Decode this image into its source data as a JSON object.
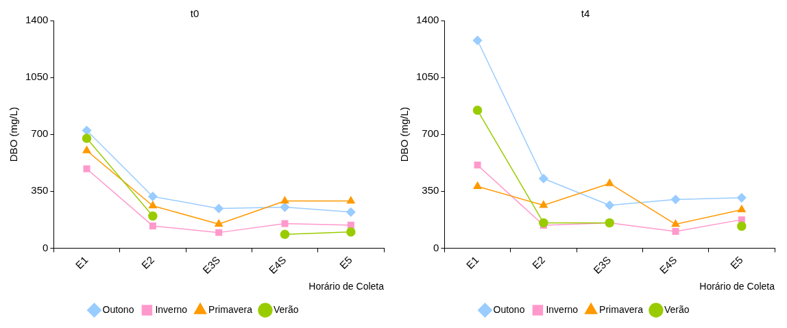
{
  "chart_data": [
    {
      "type": "line",
      "title": "t0",
      "xlabel": "Horário de Coleta",
      "ylabel": "DBO (mg/L)",
      "categories": [
        "E1",
        "E2",
        "E3S",
        "E4S",
        "E5"
      ],
      "ylim": [
        0,
        1400
      ],
      "yticks": [
        0,
        350,
        700,
        1050,
        1400
      ],
      "grid": false,
      "legend": "bottom",
      "line_style": "solid",
      "series": [
        {
          "name": "Outono",
          "color": "#99ccff",
          "marker": "diamond",
          "values": [
            724,
            318,
            244,
            252,
            222
          ]
        },
        {
          "name": "Inverno",
          "color": "#ff99cc",
          "marker": "square",
          "values": [
            488,
            137,
            96,
            151,
            142
          ]
        },
        {
          "name": "Primavera",
          "color": "#ff9900",
          "marker": "triangle",
          "values": [
            600,
            261,
            148,
            290,
            290
          ]
        },
        {
          "name": "Verão",
          "color": "#99cc00",
          "marker": "circle",
          "values": [
            676,
            198,
            null,
            85,
            100
          ]
        }
      ]
    },
    {
      "type": "line",
      "title": "t4",
      "xlabel": "Horário de Coleta",
      "ylabel": "DBO (mg/L)",
      "categories": [
        "E1",
        "E2",
        "E3S",
        "E4S",
        "E5"
      ],
      "ylim": [
        0,
        1400
      ],
      "yticks": [
        0,
        350,
        700,
        1050,
        1400
      ],
      "grid": false,
      "legend": "bottom",
      "line_style": "solid",
      "series": [
        {
          "name": "Outono",
          "color": "#99ccff",
          "marker": "diamond",
          "values": [
            1278,
            428,
            264,
            300,
            310
          ]
        },
        {
          "name": "Inverno",
          "color": "#ff99cc",
          "marker": "square",
          "values": [
            511,
            141,
            156,
            103,
            175
          ]
        },
        {
          "name": "Primavera",
          "color": "#ff9900",
          "marker": "triangle",
          "values": [
            380,
            264,
            398,
            147,
            237
          ]
        },
        {
          "name": "Verão",
          "color": "#99cc00",
          "marker": "circle",
          "values": [
            848,
            156,
            156,
            null,
            135
          ]
        }
      ]
    }
  ]
}
